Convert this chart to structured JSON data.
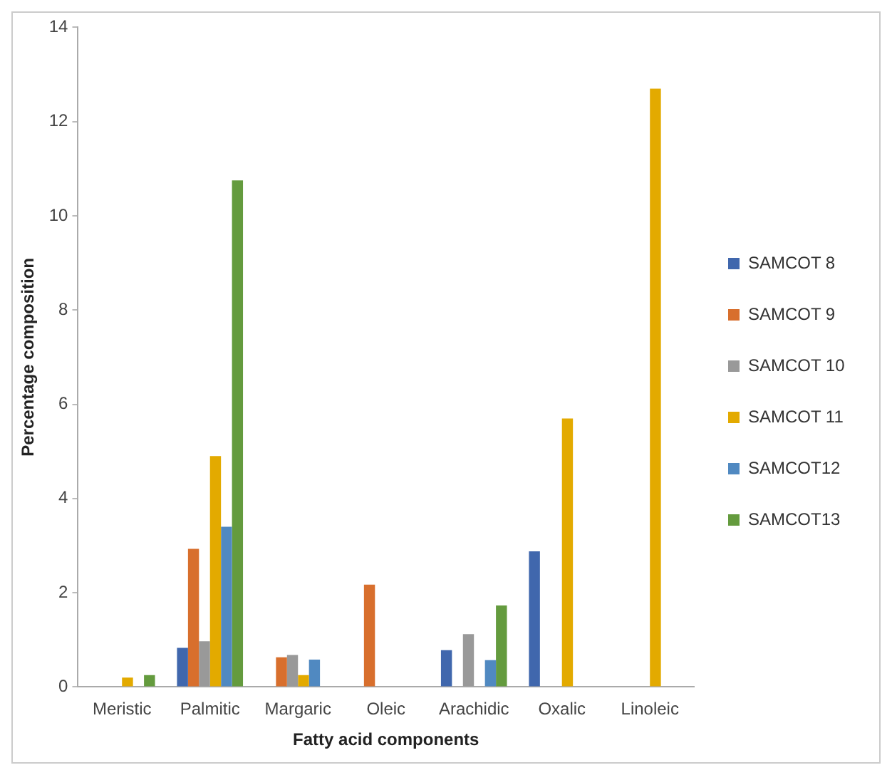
{
  "chart_data": {
    "type": "bar",
    "xlabel": "Fatty acid components",
    "ylabel": "Percentage composition",
    "categories": [
      "Meristic",
      "Palmitic",
      "Margaric",
      "Oleic",
      "Arachidic",
      "Oxalic",
      "Linoleic"
    ],
    "series": [
      {
        "name": "SAMCOT 8",
        "color": "#4067ad",
        "values": [
          null,
          0.83,
          null,
          null,
          0.78,
          2.88,
          null
        ]
      },
      {
        "name": "SAMCOT 9",
        "color": "#d86f2d",
        "values": [
          null,
          2.93,
          0.63,
          2.17,
          null,
          null,
          null
        ]
      },
      {
        "name": "SAMCOT 10",
        "color": "#999999",
        "values": [
          null,
          0.97,
          0.68,
          null,
          1.12,
          null,
          null
        ]
      },
      {
        "name": "SAMCOT 11",
        "color": "#e3aa00",
        "values": [
          0.2,
          4.9,
          0.25,
          null,
          null,
          5.7,
          12.7
        ]
      },
      {
        "name": "SAMCOT12",
        "color": "#5089c1",
        "values": [
          null,
          3.4,
          0.58,
          null,
          0.57,
          null,
          null
        ]
      },
      {
        "name": "SAMCOT13",
        "color": "#649b3e",
        "values": [
          0.25,
          10.75,
          null,
          null,
          1.73,
          null,
          null
        ]
      }
    ],
    "ylim": [
      0,
      14
    ],
    "yticks": [
      0,
      2,
      4,
      6,
      8,
      10,
      12,
      14
    ],
    "grid": false,
    "legend": "right"
  }
}
